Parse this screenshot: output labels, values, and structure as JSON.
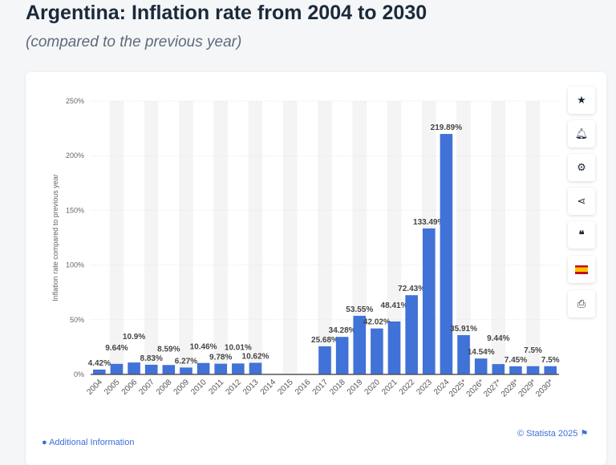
{
  "header": {
    "title": "Argentina: Inflation rate from 2004 to 2030",
    "subtitle": "(compared to the previous year)"
  },
  "footer": {
    "credit": "© Statista 2025",
    "additional": "Additional Information"
  },
  "sidebar": [
    "star-icon",
    "bell-icon",
    "gear-icon",
    "share-icon",
    "quote-icon",
    "flag-spain-icon",
    "print-icon"
  ],
  "chart_data": {
    "type": "bar",
    "title": "Argentina: Inflation rate from 2004 to 2030",
    "ylabel": "Inflation rate compared to previous year",
    "xlabel": "",
    "ylim": [
      0,
      250
    ],
    "yticks": [
      "0%",
      "50%",
      "100%",
      "150%",
      "200%",
      "250%"
    ],
    "color": "#4072d8",
    "categories": [
      "2004",
      "2005",
      "2006",
      "2007",
      "2008",
      "2009",
      "2010",
      "2011",
      "2012",
      "2013",
      "2014",
      "2015",
      "2016",
      "2017",
      "2018",
      "2019",
      "2020",
      "2021",
      "2022",
      "2023",
      "2024",
      "2025*",
      "2026*",
      "2027*",
      "2028*",
      "2029*",
      "2030*"
    ],
    "values": [
      4.42,
      9.64,
      10.9,
      8.83,
      8.59,
      6.27,
      10.46,
      9.78,
      10.01,
      10.62,
      null,
      null,
      null,
      25.68,
      34.28,
      53.55,
      42.02,
      48.41,
      72.43,
      133.49,
      219.89,
      35.91,
      14.54,
      9.44,
      7.45,
      7.5,
      7.5
    ],
    "labels": [
      "4.42%",
      "9.64%",
      "10.9%",
      "8.83%",
      "8.59%",
      "6.27%",
      "10.46%",
      "9.78%",
      "10.01%",
      "10.62%",
      "",
      "",
      "",
      "25.68%",
      "34.28%",
      "53.55%",
      "42.02%",
      "48.41%",
      "72.43%",
      "133.49%",
      "219.89%",
      "35.91%",
      "14.54%",
      "9.44%",
      "7.45%",
      "7.5%",
      "7.5%"
    ]
  }
}
